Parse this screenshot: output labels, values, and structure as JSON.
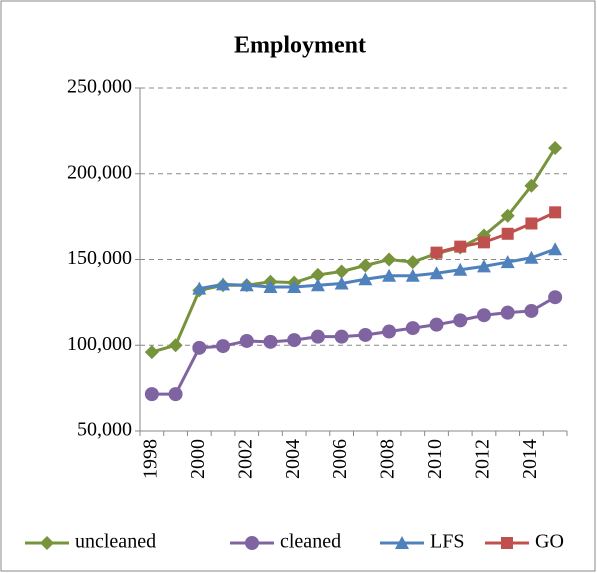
{
  "chart_data": {
    "type": "line",
    "title": "Employment",
    "categories": [
      "1998",
      null,
      "2000",
      null,
      "2002",
      null,
      "2004",
      null,
      "2006",
      null,
      "2008",
      null,
      "2010",
      null,
      "2012",
      null,
      "2014",
      null
    ],
    "series": [
      {
        "name": "uncleaned",
        "color": "#77933c",
        "marker": "diamond",
        "values": [
          96000,
          100000,
          132000,
          135000,
          135000,
          137000,
          136500,
          141000,
          143000,
          146500,
          150000,
          148500,
          153500,
          157000,
          164000,
          175500,
          193000,
          215000
        ]
      },
      {
        "name": "cleaned",
        "color": "#8064a2",
        "marker": "circle",
        "values": [
          71500,
          71500,
          98500,
          99500,
          102500,
          102000,
          103000,
          105000,
          105000,
          106000,
          108000,
          110000,
          112000,
          114500,
          117500,
          119000,
          120000,
          128000
        ]
      },
      {
        "name": "LFS",
        "color": "#4f81bd",
        "marker": "triangle",
        "values": [
          null,
          null,
          133000,
          135500,
          135000,
          134000,
          134000,
          135000,
          136000,
          138500,
          140500,
          140500,
          142000,
          144000,
          146000,
          148500,
          151000,
          156000
        ]
      },
      {
        "name": "GO",
        "color": "#c0504d",
        "marker": "square",
        "values": [
          null,
          null,
          null,
          null,
          null,
          null,
          null,
          null,
          null,
          null,
          null,
          null,
          154000,
          157500,
          160000,
          165000,
          171000,
          177500
        ]
      }
    ],
    "ylim": [
      50000,
      250000
    ],
    "yticks": [
      {
        "value": 50000,
        "label": "50,000"
      },
      {
        "value": 100000,
        "label": "100,000"
      },
      {
        "value": 150000,
        "label": "150,000"
      },
      {
        "value": 200000,
        "label": "200,000"
      },
      {
        "value": 250000,
        "label": "250,000"
      }
    ],
    "grid": true,
    "legend": "bottom"
  }
}
